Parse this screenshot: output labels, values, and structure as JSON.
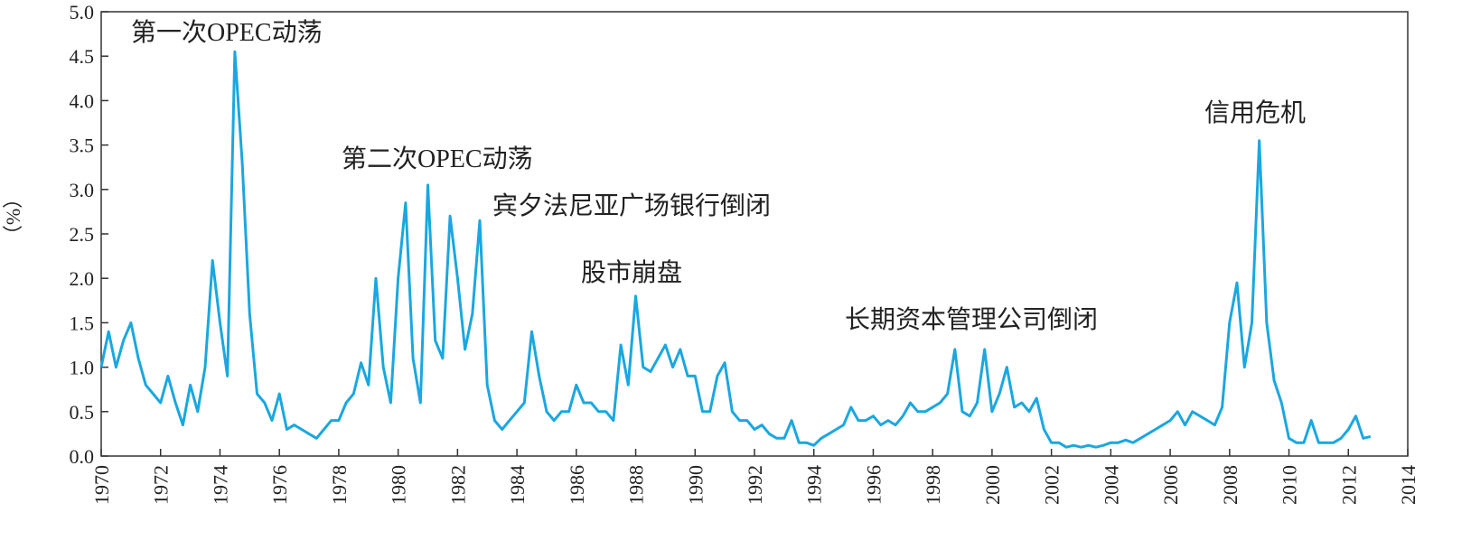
{
  "chart_data": {
    "type": "line",
    "y_label": "（%）",
    "annotations": [
      "第一次OPEC动荡",
      "第二次OPEC动荡",
      "宾夕法尼亚广场银行倒闭",
      "股市崩盘",
      "长期资本管理公司倒闭",
      "信用危机"
    ],
    "x": [
      1970,
      1970.25,
      1970.5,
      1970.75,
      1971,
      1971.25,
      1971.5,
      1971.75,
      1972,
      1972.25,
      1972.5,
      1972.75,
      1973,
      1973.25,
      1973.5,
      1973.75,
      1974,
      1974.25,
      1974.5,
      1974.75,
      1975,
      1975.25,
      1975.5,
      1975.75,
      1976,
      1976.25,
      1976.5,
      1976.75,
      1977,
      1977.25,
      1977.5,
      1977.75,
      1978,
      1978.25,
      1978.5,
      1978.75,
      1979,
      1979.25,
      1979.5,
      1979.75,
      1980,
      1980.25,
      1980.5,
      1980.75,
      1981,
      1981.25,
      1981.5,
      1981.75,
      1982,
      1982.25,
      1982.5,
      1982.75,
      1983,
      1983.25,
      1983.5,
      1983.75,
      1984,
      1984.25,
      1984.5,
      1984.75,
      1985,
      1985.25,
      1985.5,
      1985.75,
      1986,
      1986.25,
      1986.5,
      1986.75,
      1987,
      1987.25,
      1987.5,
      1987.75,
      1988,
      1988.25,
      1988.5,
      1988.75,
      1989,
      1989.25,
      1989.5,
      1989.75,
      1990,
      1990.25,
      1990.5,
      1990.75,
      1991,
      1991.25,
      1991.5,
      1991.75,
      1992,
      1992.25,
      1992.5,
      1992.75,
      1993,
      1993.25,
      1993.5,
      1993.75,
      1994,
      1994.25,
      1994.5,
      1994.75,
      1995,
      1995.25,
      1995.5,
      1995.75,
      1996,
      1996.25,
      1996.5,
      1996.75,
      1997,
      1997.25,
      1997.5,
      1997.75,
      1998,
      1998.25,
      1998.5,
      1998.75,
      1999,
      1999.25,
      1999.5,
      1999.75,
      2000,
      2000.25,
      2000.5,
      2000.75,
      2001,
      2001.25,
      2001.5,
      2001.75,
      2002,
      2002.25,
      2002.5,
      2002.75,
      2003,
      2003.25,
      2003.5,
      2003.75,
      2004,
      2004.25,
      2004.5,
      2004.75,
      2005,
      2005.25,
      2005.5,
      2005.75,
      2006,
      2006.25,
      2006.5,
      2006.75,
      2007,
      2007.25,
      2007.5,
      2007.75,
      2008,
      2008.25,
      2008.5,
      2008.75,
      2009,
      2009.25,
      2009.5,
      2009.75,
      2010,
      2010.25,
      2010.5,
      2010.75,
      2011,
      2011.25,
      2011.5,
      2011.75,
      2012,
      2012.25,
      2012.5,
      2012.75
    ],
    "series": [
      {
        "name": null,
        "color": "#1aa7e0",
        "values": [
          1.0,
          1.4,
          1.0,
          1.3,
          1.5,
          1.1,
          0.8,
          0.7,
          0.6,
          0.9,
          0.6,
          0.35,
          0.8,
          0.5,
          1.0,
          2.2,
          1.5,
          0.9,
          4.55,
          3.3,
          1.6,
          0.7,
          0.6,
          0.4,
          0.7,
          0.3,
          0.35,
          0.3,
          0.25,
          0.2,
          0.3,
          0.4,
          0.4,
          0.6,
          0.7,
          1.05,
          0.8,
          2.0,
          1.0,
          0.6,
          2.0,
          2.85,
          1.1,
          0.6,
          3.05,
          1.3,
          1.1,
          2.7,
          2.0,
          1.2,
          1.6,
          2.65,
          0.8,
          0.4,
          0.3,
          0.4,
          0.5,
          0.6,
          1.4,
          0.9,
          0.5,
          0.4,
          0.5,
          0.5,
          0.8,
          0.6,
          0.6,
          0.5,
          0.5,
          0.4,
          1.25,
          0.8,
          1.8,
          1.0,
          0.95,
          1.1,
          1.25,
          1.0,
          1.2,
          0.9,
          0.9,
          0.5,
          0.5,
          0.9,
          1.05,
          0.5,
          0.4,
          0.4,
          0.3,
          0.35,
          0.25,
          0.2,
          0.2,
          0.4,
          0.15,
          0.15,
          0.12,
          0.2,
          0.25,
          0.3,
          0.35,
          0.55,
          0.4,
          0.4,
          0.45,
          0.35,
          0.4,
          0.35,
          0.45,
          0.6,
          0.5,
          0.5,
          0.55,
          0.6,
          0.7,
          1.2,
          0.5,
          0.45,
          0.6,
          1.2,
          0.5,
          0.7,
          1.0,
          0.55,
          0.6,
          0.5,
          0.65,
          0.3,
          0.15,
          0.15,
          0.1,
          0.12,
          0.1,
          0.12,
          0.1,
          0.12,
          0.15,
          0.15,
          0.18,
          0.15,
          0.2,
          0.25,
          0.3,
          0.35,
          0.4,
          0.5,
          0.35,
          0.5,
          0.45,
          0.4,
          0.35,
          0.55,
          1.5,
          1.95,
          1.0,
          1.5,
          3.55,
          1.5,
          0.85,
          0.6,
          0.2,
          0.15,
          0.15,
          0.4,
          0.15,
          0.15,
          0.15,
          0.2,
          0.3,
          0.45,
          0.2,
          0.22
        ]
      }
    ],
    "xlim": [
      1970,
      2014
    ],
    "xticks": [
      1970,
      1972,
      1974,
      1976,
      1978,
      1980,
      1982,
      1984,
      1986,
      1988,
      1990,
      1992,
      1994,
      1996,
      1998,
      2000,
      2002,
      2004,
      2006,
      2008,
      2010,
      2012,
      2014
    ],
    "ylim": [
      0,
      5
    ],
    "yticks": [
      {
        "value": 0,
        "label": "0.0"
      },
      0.5,
      {
        "value": 1,
        "label": "1.0"
      },
      1.5,
      {
        "value": 2,
        "label": "2.0"
      },
      2.5,
      {
        "value": 3,
        "label": "3.0"
      },
      3.5,
      {
        "value": 4,
        "label": "4.0"
      },
      4.5,
      {
        "value": 5,
        "label": "5.0"
      }
    ]
  }
}
